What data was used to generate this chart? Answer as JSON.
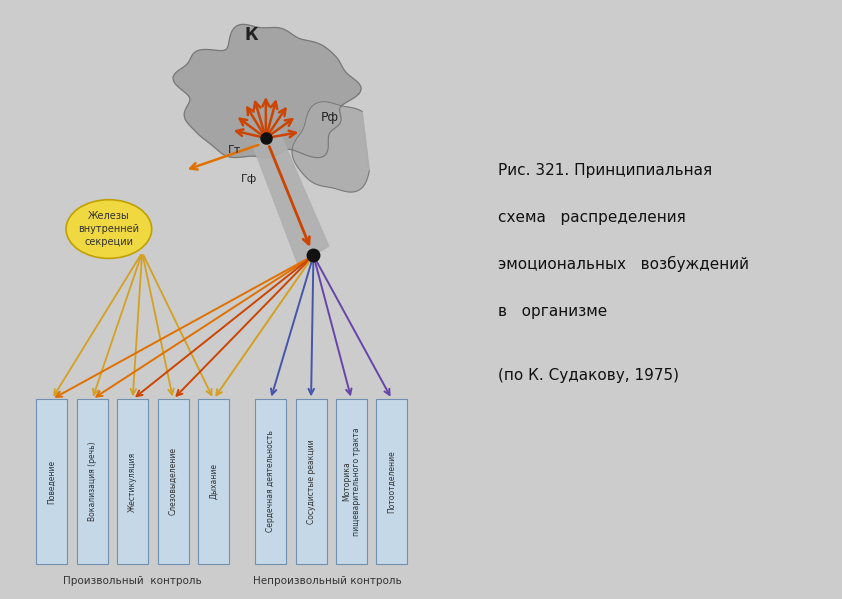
{
  "bg_color": "#d8d8d8",
  "diagram_bg": "#e8e8e8",
  "caption_line1": "Рис. 321. Принципиальная",
  "caption_line2": "схема   распределения",
  "caption_line3": "эмоциональных   возбуждений",
  "caption_line4": "в   организме",
  "caption_line5": "(по К. Судакову, 1975)",
  "voluntary_label": "Произвольный  контроль",
  "involuntary_label": "Непроизвольный контроль",
  "boxes_left": [
    "Поведение",
    "Вокализация (речь)",
    "Жестикуляция",
    "Слезовыделение",
    "Дыхание"
  ],
  "boxes_right": [
    "Сердечная деятельность",
    "Сосудистые реакции",
    "Моторика\nпищеварительного тракта",
    "Потоотделение"
  ],
  "brain_label_k": "К",
  "brain_label_rf": "Рф",
  "brain_label_gt": "Гт",
  "brain_label_gf": "Гф",
  "glands_label": "Железы\nвнутренней\nсекреции",
  "arrow_color_red": "#cc4400",
  "arrow_color_orange": "#e07000",
  "arrow_color_yellow": "#d4a020",
  "arrow_color_blue": "#4455aa",
  "arrow_color_purple": "#6644aa",
  "box_fill": "#c5d8e8",
  "box_edge": "#7090b0",
  "node_color": "#111111"
}
